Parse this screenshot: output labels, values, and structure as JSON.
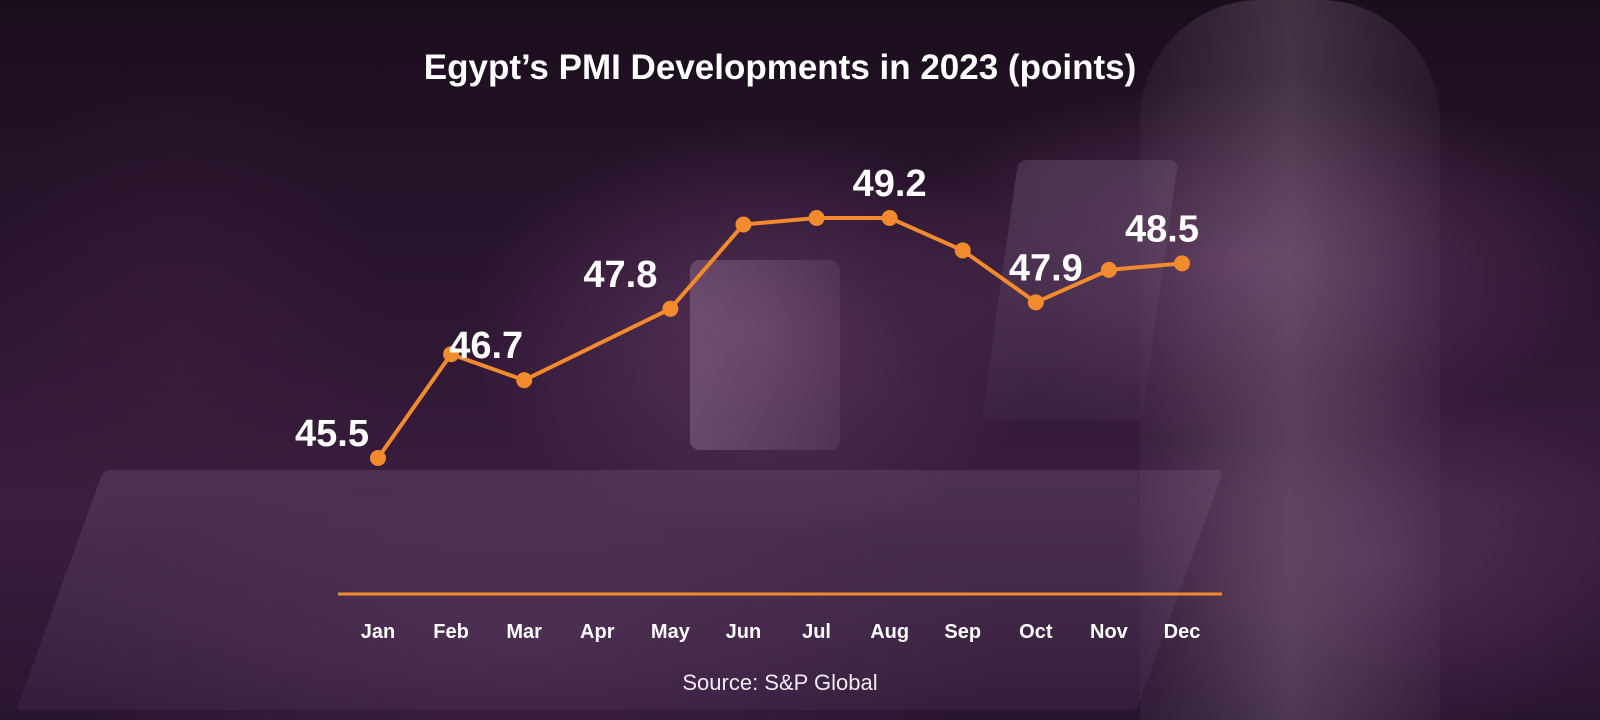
{
  "title": "Egypt’s PMI Developments in 2023 (points)",
  "source": "Source: S&P Global",
  "colors": {
    "line": "#f28a2e",
    "axis": "#f28a2e",
    "text": "#ffffff"
  },
  "chart_data": {
    "type": "line",
    "title": "Egypt’s PMI Developments in 2023 (points)",
    "categories": [
      "Jan",
      "Feb",
      "Mar",
      "Apr",
      "May",
      "Jun",
      "Jul",
      "Aug",
      "Sep",
      "Oct",
      "Nov",
      "Dec"
    ],
    "series": [
      {
        "values": [
          45.5,
          47.1,
          46.7,
          null,
          47.8,
          49.1,
          49.2,
          49.2,
          48.7,
          47.9,
          48.4,
          48.5
        ]
      }
    ],
    "data_labels": [
      {
        "index": 0,
        "text": "45.5"
      },
      {
        "index": 2,
        "text": "46.7"
      },
      {
        "index": 4,
        "text": "47.8"
      },
      {
        "index": 7,
        "text": "49.2"
      },
      {
        "index": 9,
        "text": "47.9"
      },
      {
        "index": 11,
        "text": "48.5"
      }
    ],
    "ylim": [
      45,
      49.5
    ],
    "grid": false,
    "legend": "none",
    "xlabel": "",
    "ylabel": ""
  }
}
